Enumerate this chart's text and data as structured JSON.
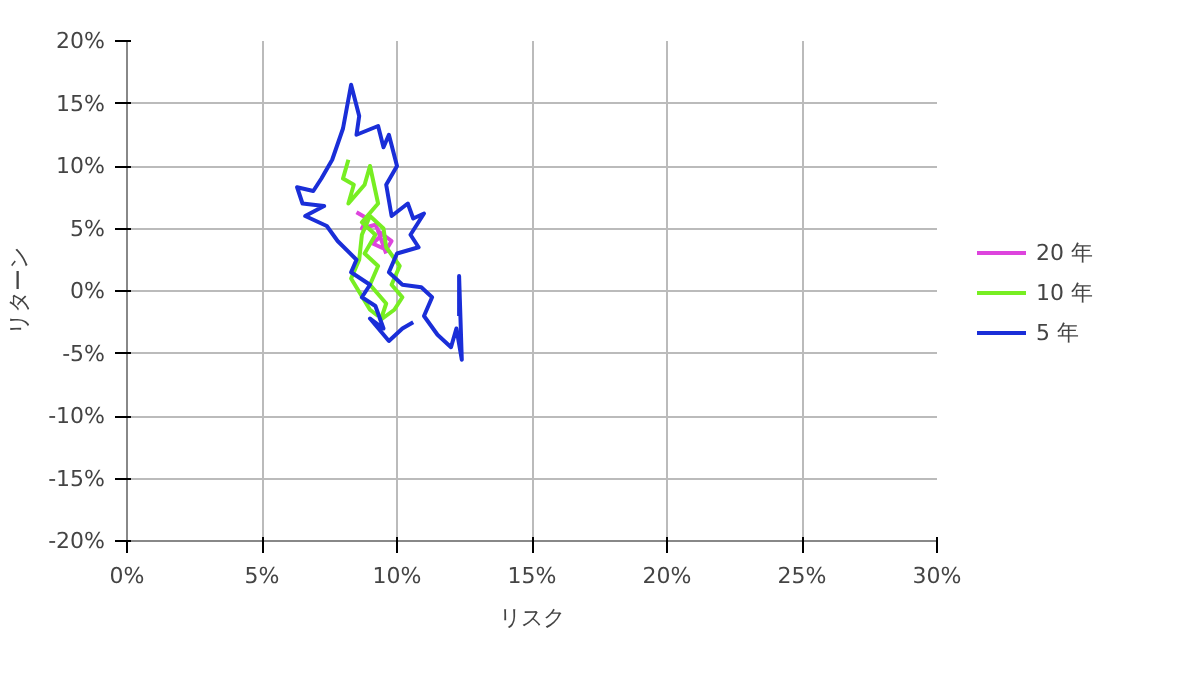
{
  "chart_data": {
    "type": "line",
    "xlabel": "リスク",
    "ylabel": "リターン",
    "xlim": [
      0,
      30
    ],
    "ylim": [
      -20,
      20
    ],
    "xticks": [
      {
        "value": 0,
        "label": "0%"
      },
      {
        "value": 5,
        "label": "5%"
      },
      {
        "value": 10,
        "label": "10%"
      },
      {
        "value": 15,
        "label": "15%"
      },
      {
        "value": 20,
        "label": "20%"
      },
      {
        "value": 25,
        "label": "25%"
      },
      {
        "value": 30,
        "label": "30%"
      }
    ],
    "yticks": [
      {
        "value": -20,
        "label": "-20%"
      },
      {
        "value": -15,
        "label": "-15%"
      },
      {
        "value": -10,
        "label": "-10%"
      },
      {
        "value": -5,
        "label": "-5%"
      },
      {
        "value": 0,
        "label": "0%"
      },
      {
        "value": 5,
        "label": "5%"
      },
      {
        "value": 10,
        "label": "10%"
      },
      {
        "value": 15,
        "label": "15%"
      },
      {
        "value": 20,
        "label": "20%"
      }
    ],
    "grid": true,
    "legend": "right",
    "marker": "none",
    "line_style": "solid",
    "series": [
      {
        "name": "20 年",
        "color": "#dd44dd",
        "x": [
          8.5,
          8.9,
          8.7,
          9.2,
          9.4,
          9.1,
          9.6,
          9.8,
          9.3,
          9.6
        ],
        "values": [
          6.3,
          5.8,
          5.0,
          5.3,
          4.4,
          3.8,
          3.3,
          4.0,
          4.8,
          3.0
        ]
      },
      {
        "name": "10 年",
        "color": "#77ee22",
        "x": [
          8.2,
          8.0,
          8.4,
          8.2,
          8.8,
          9.0,
          9.3,
          8.7,
          9.2,
          8.8,
          9.3,
          9.0,
          9.6,
          9.4,
          9.9,
          10.2,
          9.8,
          10.1,
          9.6,
          9.5,
          9.0,
          8.7,
          8.6,
          8.3,
          9.0,
          9.3
        ],
        "values": [
          10.5,
          9.0,
          8.5,
          7.0,
          8.5,
          10.0,
          7.0,
          5.5,
          4.5,
          3.0,
          2.0,
          0.5,
          -1.0,
          -2.3,
          -1.5,
          -0.5,
          0.5,
          2.0,
          3.5,
          5.0,
          6.0,
          4.5,
          2.5,
          1.0,
          -1.5,
          -2.0
        ]
      },
      {
        "name": "5 年",
        "color": "#1a2ed8",
        "x": [
          10.6,
          10.2,
          9.7,
          9.0,
          9.5,
          9.2,
          8.7,
          9.0,
          8.3,
          8.5,
          7.8,
          7.4,
          6.6,
          7.3,
          6.5,
          6.3,
          6.9,
          7.2,
          7.6,
          8.0,
          8.3,
          8.6,
          8.5,
          9.3,
          9.5,
          9.7,
          10.0,
          9.6,
          9.8,
          10.4,
          10.6,
          11.0,
          10.5,
          10.8,
          10.0,
          9.7,
          10.2,
          10.9,
          11.3,
          11.0,
          11.5,
          12.0,
          12.2,
          12.4,
          12.3,
          12.3
        ],
        "values": [
          -2.5,
          -3.0,
          -4.0,
          -2.2,
          -3.0,
          -1.2,
          -0.5,
          0.5,
          1.5,
          2.5,
          4.0,
          5.2,
          6.0,
          6.8,
          7.0,
          8.3,
          8.0,
          9.0,
          10.5,
          13.0,
          16.5,
          14.0,
          12.5,
          13.2,
          11.5,
          12.5,
          10.0,
          8.5,
          6.0,
          7.0,
          5.8,
          6.2,
          4.5,
          3.5,
          3.0,
          1.5,
          0.5,
          0.3,
          -0.5,
          -2.0,
          -3.5,
          -4.5,
          -3.0,
          -5.5,
          1.2,
          -2.0
        ]
      }
    ]
  }
}
